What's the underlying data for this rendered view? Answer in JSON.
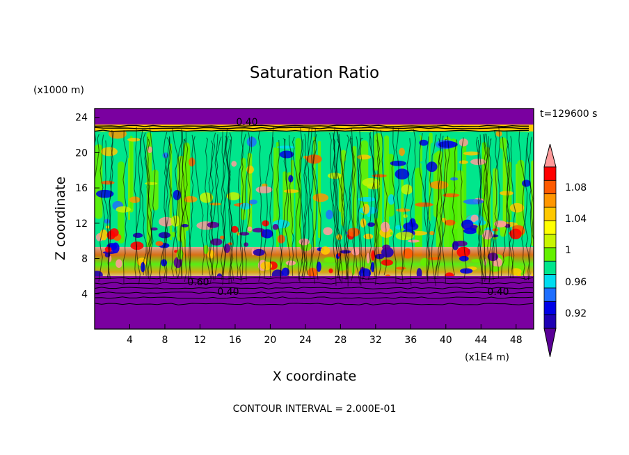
{
  "chart_data": {
    "type": "heatmap",
    "title": "Saturation Ratio",
    "xlabel": "X coordinate",
    "ylabel": "Z coordinate",
    "x_unit": "(x1E4 m)",
    "y_unit": "(x1000 m)",
    "time_label": "t=129600 s",
    "footer": "CONTOUR INTERVAL = 2.000E-01",
    "xlim": [
      0,
      50
    ],
    "ylim": [
      0,
      25
    ],
    "x_ticks": [
      4,
      8,
      12,
      16,
      20,
      24,
      28,
      32,
      36,
      40,
      44,
      48
    ],
    "y_ticks": [
      4,
      8,
      12,
      16,
      20,
      24
    ],
    "colorbar": {
      "labels": [
        "0.92",
        "0.96",
        "1",
        "1.04",
        "1.08"
      ],
      "colors": [
        "#5a0096",
        "#1e00b4",
        "#0000e6",
        "#1e6eff",
        "#00dcf0",
        "#00e68c",
        "#64f000",
        "#c8f500",
        "#ffff00",
        "#ffc800",
        "#ff9600",
        "#ff5a00",
        "#ff0000",
        "#ff9b9b"
      ]
    },
    "contour_labels": [
      "0.40",
      "0.60",
      "0.40",
      "0.40"
    ]
  }
}
